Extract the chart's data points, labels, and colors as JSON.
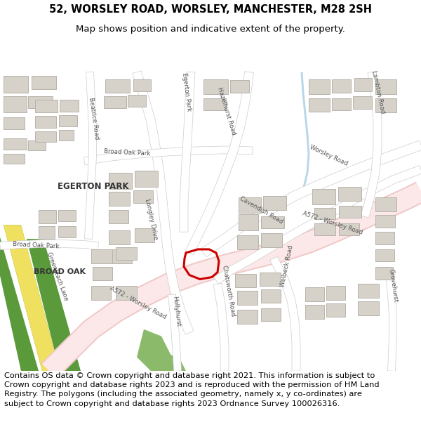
{
  "title_line1": "52, WORSLEY ROAD, WORSLEY, MANCHESTER, M28 2SH",
  "title_line2": "Map shows position and indicative extent of the property.",
  "footer_text": "Contains OS data © Crown copyright and database right 2021. This information is subject to Crown copyright and database rights 2023 and is reproduced with the permission of HM Land Registry. The polygons (including the associated geometry, namely x, y co-ordinates) are subject to Crown copyright and database rights 2023 Ordnance Survey 100026316.",
  "title_fontsize": 10.5,
  "footer_fontsize": 8.2,
  "map_bg": "#f5f3f0",
  "road_color_major": "#f0c8c8",
  "road_color_minor": "#ffffff",
  "road_outline": "#cccccc",
  "building_fill": "#d6d2ca",
  "building_outline": "#b8b4ac",
  "green_dark": "#5a9a3a",
  "green_light": "#8aba6a",
  "yellow_road": "#f0e060",
  "property_outline": "#cc0000",
  "property_lw": 2.2,
  "text_color": "#444444",
  "road_label_color": "#555555",
  "water_color": "#b8d8e8"
}
